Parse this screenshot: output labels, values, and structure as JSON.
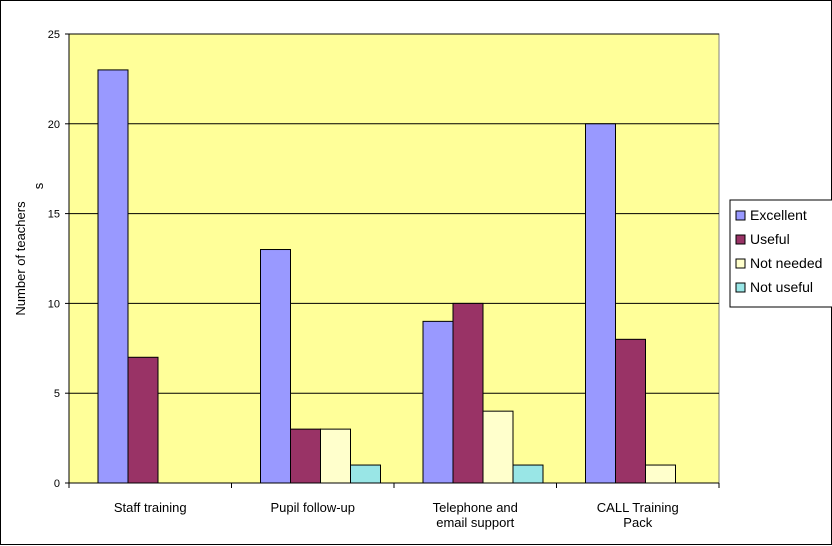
{
  "chart_data": {
    "type": "bar",
    "categories": [
      [
        "Staff training"
      ],
      [
        "Pupil follow-up"
      ],
      [
        "Telephone and",
        "email support"
      ],
      [
        "CALL Training",
        "Pack"
      ]
    ],
    "series": [
      {
        "name": "Excellent",
        "color": "#9999ff",
        "values": [
          23,
          13,
          9,
          20
        ]
      },
      {
        "name": "Useful",
        "color": "#993366",
        "values": [
          7,
          3,
          10,
          8
        ]
      },
      {
        "name": "Not needed",
        "color": "#ffffcc",
        "values": [
          0,
          3,
          4,
          1
        ]
      },
      {
        "name": "Not useful",
        "color": "#99e6e6",
        "values": [
          0,
          1,
          1,
          0
        ]
      }
    ],
    "ylabel": "Number of teachers",
    "ylabel_suffix": "s",
    "ylim": [
      0,
      25
    ],
    "yticks": [
      0,
      5,
      10,
      15,
      20,
      25
    ],
    "grid": true,
    "plot_background": "#ffff99",
    "legend_position": "right"
  }
}
